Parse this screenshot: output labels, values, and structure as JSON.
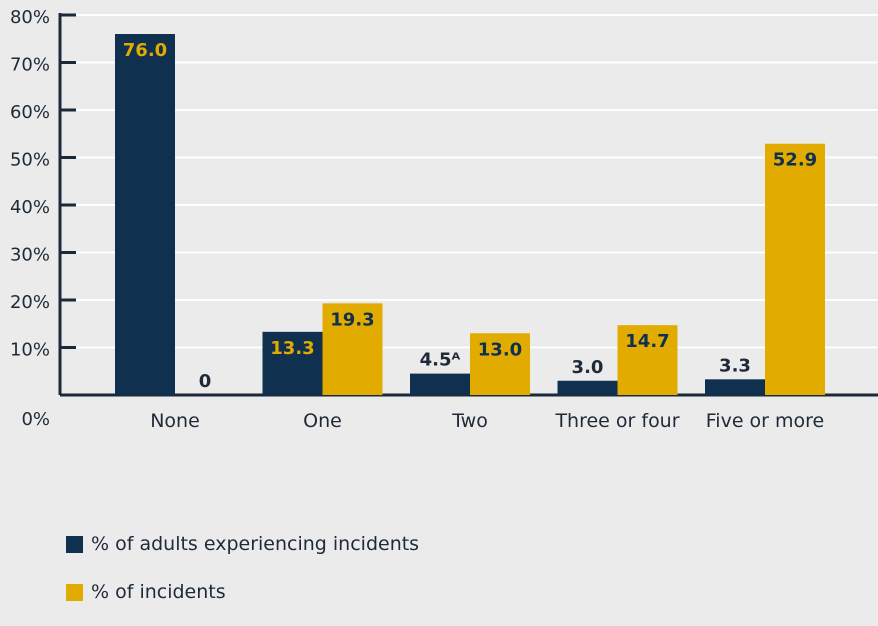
{
  "chart_data": {
    "type": "bar",
    "categories": [
      "None",
      "One",
      "Two",
      "Three or four",
      "Five or more"
    ],
    "series": [
      {
        "name": "% of adults experiencing incidents",
        "values": [
          76.0,
          13.3,
          4.5,
          3.0,
          3.3
        ],
        "labels": [
          "76.0",
          "13.3",
          "4.5ᴬ",
          "3.0",
          "3.3"
        ],
        "color": "#10304f"
      },
      {
        "name": "% of incidents",
        "values": [
          0,
          19.3,
          13.0,
          14.7,
          52.9
        ],
        "labels": [
          "0",
          "19.3",
          "13.0",
          "14.7",
          "52.9"
        ],
        "color": "#e2ab00"
      }
    ],
    "y_ticks": [
      "0%",
      "10%",
      "20%",
      "30%",
      "40%",
      "50%",
      "60%",
      "70%",
      "80%"
    ],
    "ylim": [
      0,
      80
    ],
    "grid": true,
    "legend_position": "bottom-left"
  },
  "colors": {
    "background": "#ebebeb",
    "axis": "#1a2a3a",
    "grid": "#ffffff",
    "text": "#1f2a36"
  }
}
